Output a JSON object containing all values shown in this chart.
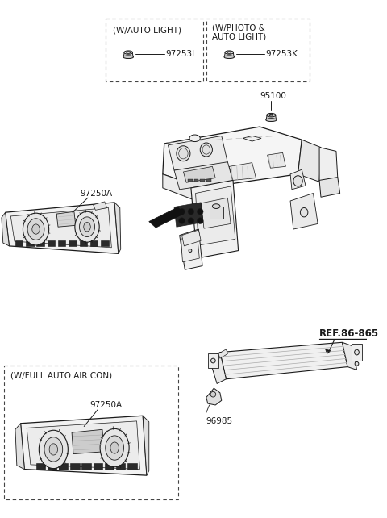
{
  "bg_color": "#ffffff",
  "lc": "#1a1a1a",
  "gc": "#666666",
  "box1_label": "(W/AUTO LIGHT)",
  "box2_line1": "(W/PHOTO &",
  "box2_line2": "AUTO LIGHT)",
  "box3_label": "(W/FULL AUTO AIR CON)",
  "p97253L": "97253L",
  "p97253K": "97253K",
  "p95100": "95100",
  "p97250A": "97250A",
  "p96985": "96985",
  "pref": "REF.86-865",
  "fs": 7.5,
  "fs_ref": 8.5
}
